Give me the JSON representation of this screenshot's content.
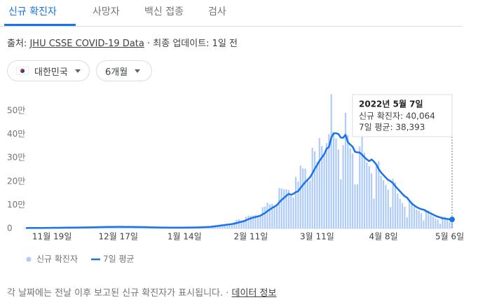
{
  "tabs": [
    "신규 확진자",
    "사망자",
    "백신 접종",
    "검사"
  ],
  "source": {
    "label": "출처:",
    "link": "JHU CSSE COVID-19 Data",
    "updated": "· 최종 업데이트: 1일 전"
  },
  "dropdowns": [
    "대한민국",
    "6개월"
  ],
  "chart_data": {
    "type": "combo",
    "categories": [
      null,
      null,
      null,
      null,
      null,
      null,
      null,
      null,
      null,
      null,
      null,
      "11월 19일",
      null,
      null,
      null,
      null,
      null,
      null,
      null,
      null,
      null,
      null,
      null,
      null,
      null,
      null,
      null,
      null,
      null,
      null,
      null,
      null,
      null,
      null,
      null,
      null,
      null,
      null,
      null,
      "12월 17일",
      null,
      null,
      null,
      null,
      null,
      null,
      null,
      null,
      null,
      null,
      null,
      null,
      null,
      null,
      null,
      null,
      null,
      null,
      null,
      null,
      null,
      null,
      null,
      null,
      null,
      null,
      null,
      "1월 14일",
      null,
      null,
      null,
      null,
      null,
      null,
      null,
      null,
      null,
      null,
      null,
      null,
      null,
      null,
      null,
      null,
      null,
      null,
      null,
      null,
      null,
      null,
      null,
      null,
      null,
      null,
      null,
      "2월 11일",
      null,
      null,
      null,
      null,
      null,
      null,
      null,
      null,
      null,
      null,
      null,
      null,
      null,
      null,
      null,
      null,
      null,
      null,
      null,
      null,
      null,
      null,
      null,
      null,
      null,
      null,
      null,
      "3월 11일",
      null,
      null,
      null,
      null,
      null,
      null,
      null,
      null,
      null,
      null,
      null,
      null,
      null,
      null,
      null,
      null,
      null,
      null,
      null,
      null,
      null,
      null,
      null,
      null,
      null,
      null,
      null,
      "4월 8일",
      null,
      null,
      null,
      null,
      null,
      null,
      null,
      null,
      null,
      null,
      null,
      null,
      null,
      null,
      null,
      null,
      null,
      null,
      null,
      null,
      null,
      null,
      null,
      null,
      null,
      null,
      null,
      "5월 6일",
      null
    ],
    "series": [
      {
        "name": "신규 확진자",
        "type": "bar",
        "color": "#aecbfa",
        "values": [
          1800,
          1700,
          2400,
          2500,
          2500,
          2400,
          2400,
          2100,
          2100,
          3200,
          3300,
          3000,
          3200,
          3100,
          2800,
          2700,
          4100,
          4100,
          4000,
          4000,
          3900,
          3300,
          3000,
          5100,
          5300,
          5300,
          5100,
          5100,
          4300,
          4900,
          7100,
          7000,
          7000,
          6900,
          6700,
          5800,
          5500,
          7800,
          7400,
          7300,
          7300,
          6200,
          5300,
          5200,
          7400,
          6900,
          6200,
          5800,
          5400,
          3900,
          4200,
          5400,
          5000,
          4900,
          4400,
          3800,
          3100,
          3000,
          4400,
          4100,
          3700,
          3500,
          3400,
          3000,
          3000,
          4400,
          4200,
          4500,
          4500,
          4200,
          3900,
          4100,
          5800,
          6600,
          6800,
          7000,
          7600,
          7500,
          8600,
          13000,
          14500,
          16100,
          17500,
          17500,
          18000,
          20000,
          20200,
          22900,
          27400,
          36300,
          38700,
          35300,
          36700,
          49500,
          54100,
          53900,
          54900,
          56400,
          54600,
          57100,
          90400,
          93100,
          109800,
          102200,
          104800,
          95300,
          99500,
          171400,
          170000,
          165800,
          166200,
          163500,
          139600,
          131700,
          219200,
          198800,
          266800,
          254300,
          254300,
          210700,
          202700,
          342400,
          327500,
          282900,
          383600,
          350100,
          309700,
          362300,
          400700,
          570000,
          407000,
          381400,
          334700,
          209100,
          353900,
          490800,
          395600,
          339500,
          318100,
          187200,
          187200,
          347500,
          424600,
          320700,
          280200,
          264100,
          234300,
          127000,
          266100,
          286300,
          224800,
          205300,
          185500,
          164400,
          90900,
          210800,
          195400,
          148400,
          125800,
          107900,
          93000,
          47700,
          118500,
          111300,
          90800,
          81000,
          75400,
          64700,
          34400,
          81000,
          76700,
          57500,
          50500,
          42300,
          37700,
          20100,
          51100,
          49100,
          42300,
          26700,
          40064
        ]
      },
      {
        "name": "7일 평균",
        "type": "line",
        "color": "#1a73e8",
        "values": [
          2000,
          2050,
          2100,
          2150,
          2200,
          2250,
          2300,
          2350,
          2450,
          2550,
          2700,
          2800,
          2950,
          3050,
          3150,
          3250,
          3400,
          3550,
          3650,
          3750,
          3850,
          3950,
          4050,
          4200,
          4400,
          4600,
          4750,
          4900,
          5050,
          5300,
          5550,
          5800,
          6050,
          6300,
          6500,
          6700,
          6800,
          6850,
          6900,
          6900,
          6950,
          6900,
          6800,
          6750,
          6700,
          6600,
          6450,
          6250,
          6150,
          5950,
          5800,
          5500,
          5250,
          5000,
          4800,
          4600,
          4400,
          4200,
          4050,
          3950,
          3800,
          3700,
          3650,
          3650,
          3650,
          3650,
          3700,
          3800,
          3950,
          4050,
          4150,
          4300,
          4500,
          4850,
          5200,
          5550,
          6000,
          6500,
          7100,
          8200,
          9300,
          10600,
          12000,
          13500,
          15000,
          16500,
          17500,
          18800,
          20400,
          23100,
          26000,
          28400,
          30700,
          35000,
          39400,
          43300,
          46200,
          48700,
          51400,
          54200,
          60000,
          65600,
          73600,
          80400,
          87300,
          93000,
          99100,
          110700,
          121600,
          129600,
          138800,
          146900,
          143500,
          147200,
          154000,
          158500,
          172000,
          184500,
          197000,
          207000,
          217000,
          234000,
          253000,
          269000,
          287000,
          301000,
          315000,
          338000,
          346000,
          386000,
          404000,
          404000,
          401000,
          386000,
          385000,
          398000,
          366000,
          356000,
          347000,
          326000,
          323000,
          322000,
          313000,
          302000,
          293000,
          286000,
          293000,
          284000,
          272000,
          252000,
          238000,
          227000,
          216000,
          206000,
          201000,
          193000,
          180000,
          169000,
          158000,
          147000,
          137000,
          131000,
          118000,
          106000,
          98000,
          91000,
          86000,
          82000,
          80000,
          74000,
          69000,
          64000,
          59000,
          54000,
          50000,
          47000,
          43000,
          42000,
          40500,
          38700,
          38393
        ]
      }
    ],
    "ylim": [
      0,
      580000
    ],
    "yticks": [
      {
        "value": 0,
        "label": "0"
      },
      {
        "value": 100000,
        "label": "10만"
      },
      {
        "value": 200000,
        "label": "20만"
      },
      {
        "value": 300000,
        "label": "30만"
      },
      {
        "value": 400000,
        "label": "40만"
      },
      {
        "value": 500000,
        "label": "50만"
      }
    ],
    "tooltip": {
      "title": "2022년 5월 7일",
      "lines": [
        "신규 확진자: 40,064",
        "7일 평균: 38,393"
      ]
    }
  },
  "footer": {
    "note": "각 날짜에는 전날 이후 보고된 신규 확진자가 표시됩니다.",
    "link": "데이터 정보"
  }
}
